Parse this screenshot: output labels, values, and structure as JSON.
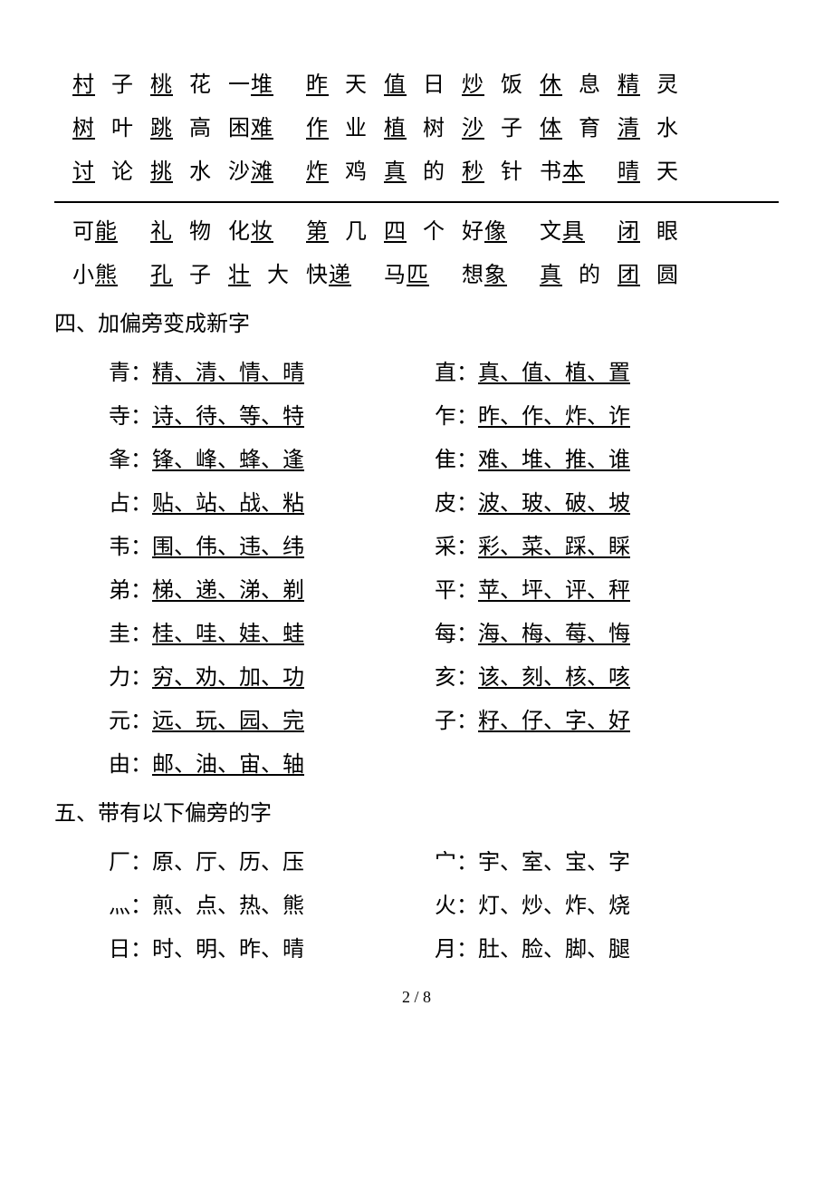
{
  "colors": {
    "text": "#000000",
    "bg": "#ffffff",
    "divider": "#000000"
  },
  "typography": {
    "body_fontsize": 24,
    "footer_fontsize": 18,
    "line_height": 2.0,
    "font_family": "SimSun"
  },
  "wordRowsTop": [
    [
      {
        "pre": "",
        "u": "村",
        "post": "子"
      },
      {
        "pre": "",
        "u": "桃",
        "post": "花"
      },
      {
        "pre": "一",
        "u": "堆",
        "post": ""
      },
      {
        "pre": "",
        "u": "昨",
        "post": "天"
      },
      {
        "pre": "",
        "u": "值",
        "post": "日"
      },
      {
        "pre": "",
        "u": "炒",
        "post": "饭"
      },
      {
        "pre": "",
        "u": "休",
        "post": "息"
      },
      {
        "pre": "",
        "u": "精",
        "post": "灵"
      }
    ],
    [
      {
        "pre": "",
        "u": "树",
        "post": "叶"
      },
      {
        "pre": "",
        "u": "跳",
        "post": "高"
      },
      {
        "pre": "困",
        "u": "难",
        "post": ""
      },
      {
        "pre": "",
        "u": "作",
        "post": "业"
      },
      {
        "pre": "",
        "u": "植",
        "post": "树"
      },
      {
        "pre": "",
        "u": "沙",
        "post": "子"
      },
      {
        "pre": "",
        "u": "体",
        "post": "育"
      },
      {
        "pre": "",
        "u": "清",
        "post": "水"
      }
    ],
    [
      {
        "pre": "",
        "u": "讨",
        "post": "论"
      },
      {
        "pre": "",
        "u": "挑",
        "post": "水"
      },
      {
        "pre": "沙",
        "u": "滩",
        "post": ""
      },
      {
        "pre": "",
        "u": "炸",
        "post": "鸡"
      },
      {
        "pre": "",
        "u": "真",
        "post": "的"
      },
      {
        "pre": "",
        "u": "秒",
        "post": "针"
      },
      {
        "pre": "书",
        "u": "本",
        "post": ""
      },
      {
        "pre": "",
        "u": "晴",
        "post": "天"
      }
    ]
  ],
  "wordRowsBottom": [
    [
      {
        "pre": "可",
        "u": "能",
        "post": ""
      },
      {
        "pre": "",
        "u": "礼",
        "post": "物"
      },
      {
        "pre": "化",
        "u": "妆",
        "post": ""
      },
      {
        "pre": "",
        "u": "第",
        "post": "几"
      },
      {
        "pre": "",
        "u": "四",
        "post": "个"
      },
      {
        "pre": "好",
        "u": "像",
        "post": ""
      },
      {
        "pre": "文",
        "u": "具",
        "post": ""
      },
      {
        "pre": "",
        "u": "闭",
        "post": "眼"
      }
    ],
    [
      {
        "pre": "小",
        "u": "熊",
        "post": ""
      },
      {
        "pre": "",
        "u": "孔",
        "post": "子"
      },
      {
        "pre": "",
        "u": "壮",
        "post": "大"
      },
      {
        "pre": "快",
        "u": "递",
        "post": ""
      },
      {
        "pre": "马",
        "u": "匹",
        "post": ""
      },
      {
        "pre": "想",
        "u": "象",
        "post": ""
      },
      {
        "pre": "",
        "u": "真",
        "post": "的"
      },
      {
        "pre": "",
        "u": "团",
        "post": "圆"
      }
    ]
  ],
  "section4": {
    "title": "四、加偏旁变成新字",
    "rows": [
      {
        "l": {
          "head": "青",
          "chars": "精、清、情、晴"
        },
        "r": {
          "head": "直",
          "chars": "真、值、植、置"
        }
      },
      {
        "l": {
          "head": "寺",
          "chars": "诗、待、等、特"
        },
        "r": {
          "head": "乍",
          "chars": "昨、作、炸、诈"
        }
      },
      {
        "l": {
          "head": "夆",
          "chars": "锋、峰、蜂、逢"
        },
        "r": {
          "head": "隹",
          "chars": "难、堆、推、谁"
        }
      },
      {
        "l": {
          "head": "占",
          "chars": "贴、站、战、粘"
        },
        "r": {
          "head": "皮",
          "chars": "波、玻、破、坡"
        }
      },
      {
        "l": {
          "head": "韦",
          "chars": "围、伟、违、纬"
        },
        "r": {
          "head": "采",
          "chars": "彩、菜、踩、睬"
        }
      },
      {
        "l": {
          "head": "弟",
          "chars": "梯、递、涕、剃"
        },
        "r": {
          "head": "平",
          "chars": "苹、坪、评、秤"
        }
      },
      {
        "l": {
          "head": "圭",
          "chars": "桂、哇、娃、蛙"
        },
        "r": {
          "head": "每",
          "chars": "海、梅、莓、悔"
        }
      },
      {
        "l": {
          "head": "力",
          "chars": "穷、劝、加、功"
        },
        "r": {
          "head": "亥",
          "chars": "该、刻、核、咳"
        }
      },
      {
        "l": {
          "head": "元",
          "chars": "远、玩、园、完"
        },
        "r": {
          "head": "子",
          "chars": "籽、仔、字、好"
        }
      },
      {
        "l": {
          "head": "由",
          "chars": "邮、油、宙、轴"
        },
        "r": null
      }
    ]
  },
  "section5": {
    "title": "五、带有以下偏旁的字",
    "rows": [
      {
        "l": {
          "head": "厂",
          "chars": "原、厅、历、压"
        },
        "r": {
          "head": "宀",
          "chars": "宇、室、宝、字"
        }
      },
      {
        "l": {
          "head": "灬",
          "chars": "煎、点、热、熊"
        },
        "r": {
          "head": "火",
          "chars": "灯、炒、炸、烧"
        }
      },
      {
        "l": {
          "head": "日",
          "chars": "时、明、昨、晴"
        },
        "r": {
          "head": "月",
          "chars": "肚、脸、脚、腿"
        }
      }
    ]
  },
  "footer": "2 / 8"
}
